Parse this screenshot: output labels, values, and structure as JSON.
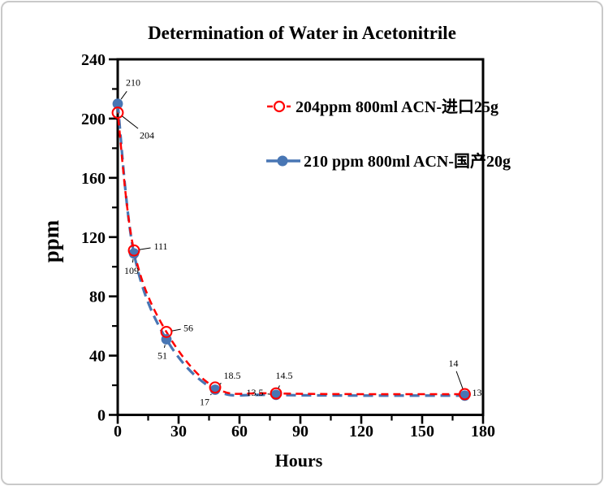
{
  "chart_data": {
    "type": "line",
    "title": "Determination of Water in Acetonitrile",
    "xlabel": "Hours",
    "ylabel": "ppm",
    "xlim": [
      0,
      180
    ],
    "ylim": [
      0,
      240
    ],
    "x_major_ticks": [
      0,
      30,
      60,
      90,
      120,
      150,
      180
    ],
    "x_minor_ticks": [
      15,
      45,
      75,
      105,
      135,
      165
    ],
    "y_major_ticks": [
      0,
      40,
      80,
      120,
      160,
      200,
      240
    ],
    "y_minor_ticks": [
      20,
      60,
      100,
      140,
      180,
      220
    ],
    "grid": false,
    "legend_position": "inside top-right",
    "frame_color": "#000000",
    "x": [
      0,
      8,
      24,
      48,
      78,
      171
    ],
    "series": [
      {
        "name": "204ppm  800ml ACN-进口25g",
        "color": "#ff0000",
        "marker": "open-circle",
        "line_style": "dashed",
        "values": [
          204,
          111,
          56,
          18.5,
          14.5,
          14
        ],
        "point_labels": [
          "204",
          "111",
          "56",
          "18.5",
          "14.5",
          "14"
        ],
        "label_offsets": [
          [
            36,
            28
          ],
          [
            33,
            -5
          ],
          [
            27,
            -5
          ],
          [
            21,
            -15
          ],
          [
            10,
            -22
          ],
          [
            -14,
            -38
          ]
        ]
      },
      {
        "name": "210 ppm 800ml ACN-国产20g",
        "color": "#4876b4",
        "marker": "filled-circle",
        "line_style": "dashed",
        "values": [
          210,
          109,
          51,
          17,
          13.5,
          13
        ],
        "point_labels": [
          "210",
          "109",
          "51",
          "17",
          "13.5",
          "13"
        ],
        "label_offsets": [
          [
            19,
            -26
          ],
          [
            -3,
            21
          ],
          [
            -5,
            20
          ],
          [
            -13,
            15
          ],
          [
            -26,
            -3
          ],
          [
            15,
            -4
          ]
        ]
      }
    ]
  }
}
